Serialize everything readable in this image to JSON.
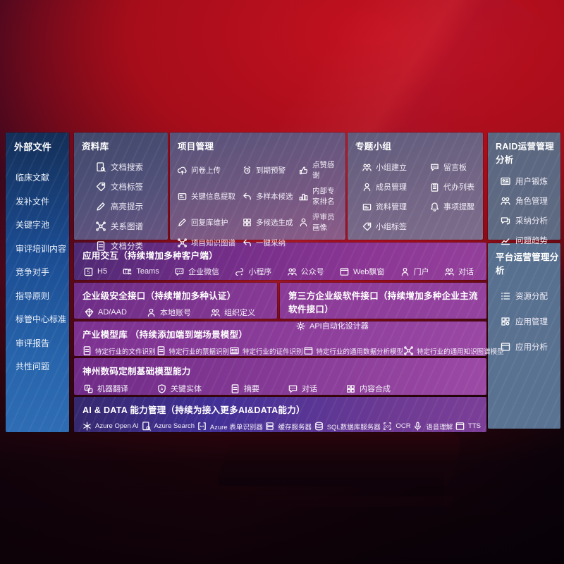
{
  "sidebar": {
    "title": "外部文件",
    "items": [
      "临床文献",
      "发补文件",
      "关键字池",
      "审评培训内容",
      "竞争对手",
      "指导原则",
      "标管中心标准",
      "审评报告",
      "共性问题"
    ]
  },
  "library": {
    "title": "资料库",
    "items": [
      {
        "label": "文档搜索",
        "icon": "doc-search-icon"
      },
      {
        "label": "文档标签",
        "icon": "doc-tag-icon"
      },
      {
        "label": "高亮提示",
        "icon": "highlight-icon"
      },
      {
        "label": "关系图谱",
        "icon": "relation-graph-icon"
      },
      {
        "label": "文档分类",
        "icon": "doc-category-icon"
      }
    ]
  },
  "project": {
    "title": "项目管理",
    "items": [
      {
        "label": "问卷上传",
        "icon": "questionnaire-upload-icon"
      },
      {
        "label": "到期预警",
        "icon": "due-alert-icon"
      },
      {
        "label": "点赞感谢",
        "icon": "like-thanks-icon"
      },
      {
        "label": "关键信息提取",
        "icon": "key-info-extract-icon"
      },
      {
        "label": "多样本候选",
        "icon": "multi-sample-icon"
      },
      {
        "label": "内部专家排名",
        "icon": "expert-ranking-icon"
      },
      {
        "label": "回复库维护",
        "icon": "reply-maintain-icon"
      },
      {
        "label": "多候选生成",
        "icon": "multi-candidate-icon"
      },
      {
        "label": "评审员画像",
        "icon": "reviewer-profile-icon"
      },
      {
        "label": "项目知识图谱",
        "icon": "project-knowledge-graph-icon"
      },
      {
        "label": "一键采纳",
        "icon": "one-click-adopt-icon"
      }
    ]
  },
  "groups": {
    "title": "专题小组",
    "items": [
      {
        "label": "小组建立",
        "icon": "group-create-icon"
      },
      {
        "label": "留言板",
        "icon": "message-board-icon"
      },
      {
        "label": "成员管理",
        "icon": "member-manage-icon"
      },
      {
        "label": "代办列表",
        "icon": "todo-list-icon"
      },
      {
        "label": "资料管理",
        "icon": "material-manage-icon"
      },
      {
        "label": "事项提醒",
        "icon": "reminder-icon"
      },
      {
        "label": "小组标签",
        "icon": "group-tag-icon"
      }
    ]
  },
  "raid": {
    "title": "RAID运营管理分析",
    "items": [
      {
        "label": "用户锻炼",
        "icon": "user-card-icon"
      },
      {
        "label": "角色管理",
        "icon": "role-manage-icon"
      },
      {
        "label": "采纳分析",
        "icon": "adoption-analysis-icon"
      },
      {
        "label": "问题趋势",
        "icon": "issue-trend-icon"
      }
    ]
  },
  "platform": {
    "title": "平台运营管理分析",
    "items": [
      {
        "label": "资源分配",
        "icon": "resource-alloc-icon"
      },
      {
        "label": "应用管理",
        "icon": "app-manage-icon"
      },
      {
        "label": "应用分析",
        "icon": "app-analysis-icon"
      }
    ]
  },
  "bands": {
    "interact": {
      "title": "应用交互（持续增加多种客户端）",
      "items": [
        {
          "label": "H5",
          "icon": "h5-icon"
        },
        {
          "label": "Teams",
          "icon": "teams-icon"
        },
        {
          "label": "企业微信",
          "icon": "wecom-icon"
        },
        {
          "label": "小程序",
          "icon": "miniprogram-icon"
        },
        {
          "label": "公众号",
          "icon": "official-account-icon"
        },
        {
          "label": "Web飘窗",
          "icon": "web-popup-icon"
        },
        {
          "label": "门户",
          "icon": "portal-icon"
        },
        {
          "label": "对话",
          "icon": "dialog-icon"
        }
      ]
    },
    "security": {
      "title": "企业级安全接口（持续增加多种认证）",
      "items": [
        {
          "label": "AD/AAD",
          "icon": "ad-aad-icon"
        },
        {
          "label": "本地账号",
          "icon": "local-account-icon"
        },
        {
          "label": "组织定义",
          "icon": "org-define-icon"
        }
      ]
    },
    "third_party": {
      "title": "第三方企业级软件接口（持续增加多种企业主流软件接口）",
      "items": [
        {
          "label": "API自动化设计器",
          "icon": "api-designer-icon"
        }
      ]
    },
    "industry_models": {
      "title": "产业模型库 （持续添加端到端场景模型）",
      "items": [
        {
          "label": "特定行业的文件识别",
          "icon": "file-recog-icon"
        },
        {
          "label": "特定行业的票据识别",
          "icon": "invoice-recog-icon"
        },
        {
          "label": "特定行业的证件识别",
          "icon": "id-recog-icon"
        },
        {
          "label": "特定行业的通用数据分析模型",
          "icon": "data-analysis-model-icon"
        },
        {
          "label": "特定行业的通用知识图谱模型",
          "icon": "knowledge-graph-model-icon"
        }
      ]
    },
    "base_models": {
      "title": "神州数码定制基础模型能力",
      "items": [
        {
          "label": "机器翻译",
          "icon": "translate-icon"
        },
        {
          "label": "关键实体",
          "icon": "key-entity-icon"
        },
        {
          "label": "摘要",
          "icon": "summary-icon"
        },
        {
          "label": "对话",
          "icon": "chat-icon"
        },
        {
          "label": "内容合成",
          "icon": "content-compose-icon"
        }
      ]
    },
    "ai_data": {
      "title": "AI & DATA 能力管理（持续为接入更多AI&DATA能力）",
      "items": [
        {
          "label": "Azure Open AI",
          "icon": "openai-icon"
        },
        {
          "label": "Azure Search",
          "icon": "azure-search-icon"
        },
        {
          "label": "Azure 表单识别器",
          "icon": "form-recognizer-icon"
        },
        {
          "label": "缓存服务器",
          "icon": "cache-server-icon"
        },
        {
          "label": "SQL数据库服务器",
          "icon": "sql-database-icon"
        },
        {
          "label": "OCR",
          "icon": "ocr-icon"
        },
        {
          "label": "语音理解",
          "icon": "speech-icon"
        },
        {
          "label": "TTS",
          "icon": "tts-icon"
        }
      ]
    }
  },
  "colors": {
    "background_red": "#ad0e1b",
    "sidebar_blue": "#1b4c92",
    "band_purple": "#8b3694",
    "band_indigo": "#423097",
    "panel_slate": "#5b7392"
  }
}
